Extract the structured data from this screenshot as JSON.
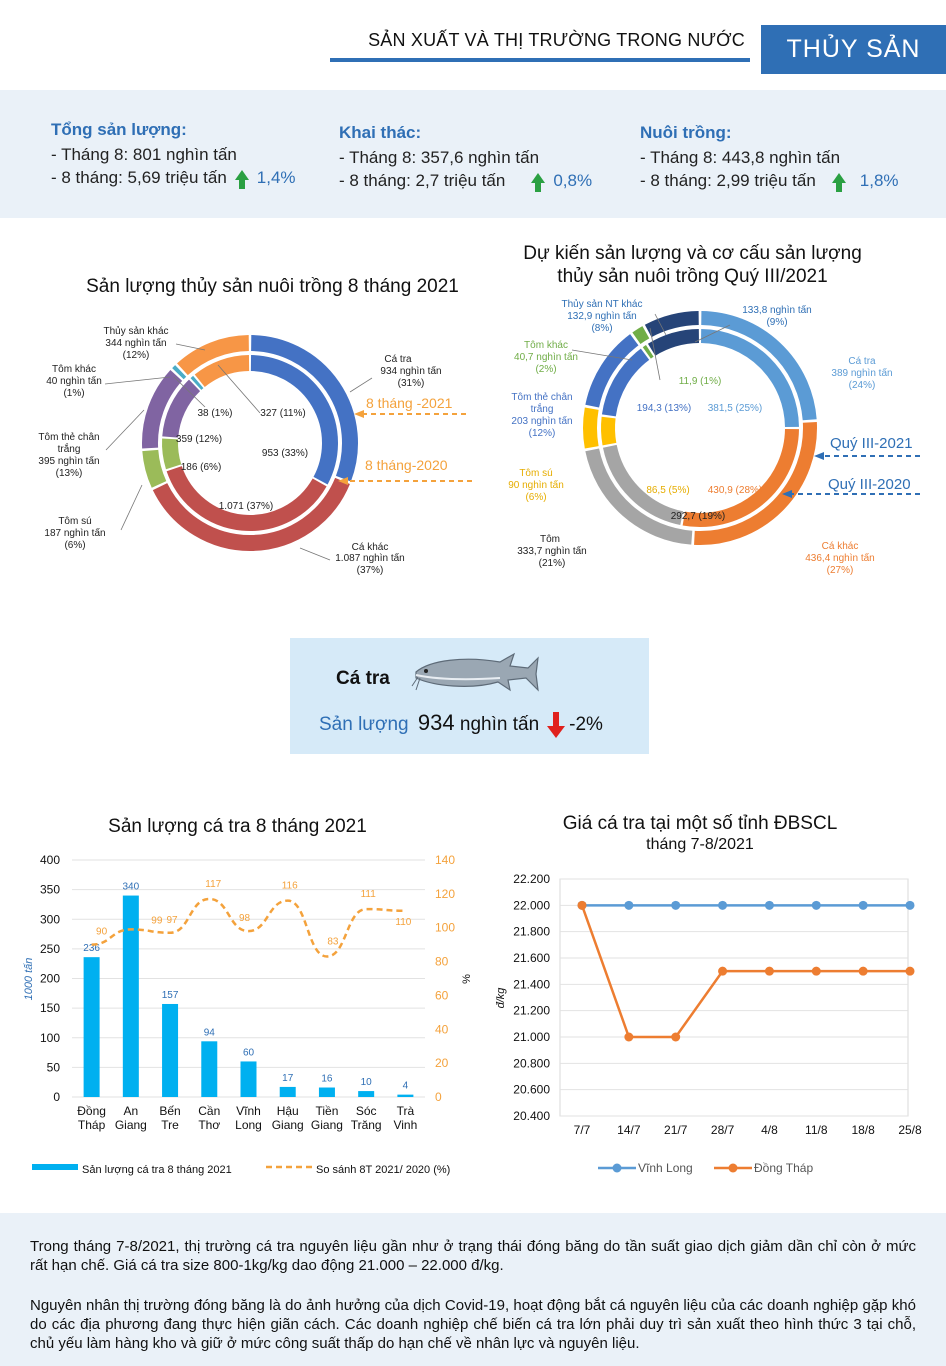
{
  "header": {
    "title": "SẢN XUẤT VÀ THỊ TRƯỜNG TRONG NƯỚC",
    "tag": "THỦY SẢN"
  },
  "stats": [
    {
      "title": "Tổng sản lượng:",
      "line1": "- Tháng 8: 801 nghìn tấn",
      "line2": "- 8 tháng: 5,69 triệu tấn",
      "change": "1,4%"
    },
    {
      "title": "Khai thác:",
      "line1": "- Tháng 8: 357,6 nghìn tấn",
      "line2": "- 8 tháng: 2,7 triệu tấn",
      "change": "0,8%"
    },
    {
      "title": "Nuôi trồng:",
      "line1": "- Tháng 8: 443,8 nghìn tấn",
      "line2": "- 8 tháng: 2,99 triệu tấn",
      "change": "1,8%"
    }
  ],
  "donut1": {
    "title": "Sản lượng thủy sản nuôi trồng 8 tháng 2021",
    "outer_series_label": "8 tháng -2021",
    "inner_series_label": "8 tháng-2020",
    "outer": [
      {
        "name": "Cá tra",
        "l1": "Cá tra",
        "l2": "934 nghìn tấn",
        "l3": "(31%)",
        "value": 31,
        "color": "#4472c4"
      },
      {
        "name": "Cá khác",
        "l1": "Cá khác",
        "l2": "1.087 nghìn tấn",
        "l3": "(37%)",
        "value": 37,
        "color": "#c0504d"
      },
      {
        "name": "Tôm sú",
        "l1": "Tôm sú",
        "l2": "187 nghìn tấn",
        "l3": "(6%)",
        "value": 6,
        "color": "#9bbb59"
      },
      {
        "name": "Tôm thẻ chân trắng",
        "l1": "Tôm thẻ chân",
        "l2": "trắng",
        "l3": "395 nghìn tấn",
        "l4": "(13%)",
        "value": 13,
        "color": "#8064a2"
      },
      {
        "name": "Tôm khác",
        "l1": "Tôm khác",
        "l2": "40 nghìn tấn",
        "l3": "(1%)",
        "value": 1,
        "color": "#4bacc6"
      },
      {
        "name": "Thủy sản khác",
        "l1": "Thủy sản khác",
        "l2": "344 nghìn tấn",
        "l3": "(12%)",
        "value": 12,
        "color": "#f79646"
      }
    ],
    "inner": [
      {
        "name": "Cá tra",
        "label": "953 (33%)",
        "value": 33
      },
      {
        "name": "Cá khác",
        "label": "1.071 (37%)",
        "value": 37
      },
      {
        "name": "Tôm sú",
        "label": "186 (6%)",
        "value": 6
      },
      {
        "name": "Tôm thẻ chân trắng",
        "label": "359 (12%)",
        "value": 12
      },
      {
        "name": "Tôm khác",
        "label": "38 (1%)",
        "value": 1
      },
      {
        "name": "Thủy sản khác",
        "label": "327 (11%)",
        "value": 11
      }
    ]
  },
  "donut2": {
    "title1": "Dự kiến sản lượng và cơ cấu sản lượng",
    "title2": "thủy sản nuôi trồng Quý III/2021",
    "outer_series_label": "Quý III-2021",
    "inner_series_label": "Quý III-2020",
    "outer": [
      {
        "name": "Cá tra",
        "l1": "Cá tra",
        "l2": "389 nghìn tấn",
        "l3": "(24%)",
        "value": 24,
        "color": "#5b9bd5"
      },
      {
        "name": "Cá khác",
        "l1": "Cá khác",
        "l2": "436,4 nghìn tấn",
        "l3": "(27%)",
        "value": 27,
        "color": "#ed7d31"
      },
      {
        "name": "Tôm",
        "l1": "Tôm",
        "l2": "333,7  nghìn tấn",
        "l3": "(21%)",
        "value": 21,
        "color": "#a5a5a5"
      },
      {
        "name": "Tôm sú",
        "l1": "Tôm sú",
        "l2": "90 nghìn tấn",
        "l3": "(6%)",
        "value": 6,
        "color": "#ffc000"
      },
      {
        "name": "Tôm thẻ chân trắng",
        "l1": "Tôm thẻ chân",
        "l2": "trắng",
        "l3": "203 nghìn tấn",
        "l4": "(12%)",
        "value": 12,
        "color": "#4472c4"
      },
      {
        "name": "Tôm khác",
        "l1": "Tôm khác",
        "l2": "40,7 nghìn tấn",
        "l3": "(2%)",
        "value": 2,
        "color": "#70ad47"
      },
      {
        "name": "Thủy sản NT khác",
        "l1": "Thủy sản NT khác",
        "l2": "132,9  nghìn tấn",
        "l3": "(8%)",
        "value": 8,
        "color": "#264478"
      }
    ],
    "inner": [
      {
        "label": "381,5  (25%)",
        "value": 25
      },
      {
        "label": "430,9  (28%)",
        "value": 28
      },
      {
        "label": "292,7  (19%)",
        "value": 19
      },
      {
        "label": "86,5  (5%)",
        "value": 5
      },
      {
        "label": "194,3  (13%)",
        "value": 13
      },
      {
        "label": "11,9  (1%)",
        "value": 1
      },
      {
        "label": "133,8  nghìn tấn",
        "label2": "(9%)",
        "value": 9
      }
    ]
  },
  "catra": {
    "name": "Cá tra",
    "label": "Sản lượng",
    "value": "934",
    "unit": "nghìn tấn",
    "change": "-2%"
  },
  "chart_data": [
    {
      "type": "bar",
      "title": "Sản lượng cá tra 8 tháng 2021",
      "categories": [
        [
          "Đồng",
          "Tháp"
        ],
        [
          "An",
          "Giang"
        ],
        [
          "Bến",
          "Tre"
        ],
        [
          "Cần",
          "Thơ"
        ],
        [
          "Vĩnh",
          "Long"
        ],
        [
          "Hậu",
          "Giang"
        ],
        [
          "Tiền",
          "Giang"
        ],
        [
          "Sóc",
          "Trăng"
        ],
        [
          "Trà",
          "Vinh"
        ]
      ],
      "series": [
        {
          "name": "Sản lượng cá tra 8 tháng 2021",
          "values": [
            236,
            340,
            157,
            94,
            60,
            17,
            16,
            10,
            4
          ],
          "color": "#00b0f0",
          "axis": "left"
        },
        {
          "name": "So sánh 8T 2021/ 2020 (%)",
          "values": [
            90,
            99,
            97,
            117,
            98,
            116,
            83,
            111,
            110
          ],
          "color": "#f4a23c",
          "axis": "right"
        }
      ],
      "ylabel": "1000 tấn",
      "y2label": "%",
      "ylim": [
        0,
        400
      ],
      "yticks": [
        0,
        50,
        100,
        150,
        200,
        250,
        300,
        350,
        400
      ],
      "y2lim": [
        0,
        140
      ],
      "y2ticks": [
        0,
        20,
        40,
        60,
        80,
        100,
        120,
        140
      ]
    },
    {
      "type": "line",
      "title": "Giá cá tra tại một số tỉnh ĐBSCL",
      "subtitle": "tháng 7-8/2021",
      "x": [
        "7/7",
        "14/7",
        "21/7",
        "28/7",
        "4/8",
        "11/8",
        "18/8",
        "25/8"
      ],
      "series": [
        {
          "name": "Vĩnh Long",
          "values": [
            22000,
            22000,
            22000,
            22000,
            22000,
            22000,
            22000,
            22000
          ],
          "color": "#5b9bd5"
        },
        {
          "name": "Đồng Tháp",
          "values": [
            22000,
            21000,
            21000,
            21500,
            21500,
            21500,
            21500,
            21500
          ],
          "color": "#ed7d31"
        }
      ],
      "ylabel": "đ/kg",
      "ylim": [
        20400,
        22200
      ],
      "yticks": [
        "20.400",
        "20.600",
        "20.800",
        "21.000",
        "21.200",
        "21.400",
        "21.600",
        "21.800",
        "22.000",
        "22.200"
      ]
    }
  ],
  "footer": {
    "p1": "Trong tháng 7-8/2021, thị trường cá tra nguyên liệu gần như ở trạng thái đóng băng do tần suất giao dịch giảm dần chỉ còn ở mức rất hạn chế. Giá cá tra size 800-1kg/kg dao động 21.000 – 22.000 đ/kg.",
    "p2": "Nguyên nhân thị trường đóng băng là do ảnh hưởng của dịch Covid-19, hoạt động bắt cá nguyên liệu của các doanh nghiệp gặp khó do các địa phương đang thực hiện giãn cách. Các doanh nghiệp chế biến cá tra lớn phải duy trì sản xuất theo hình thức 3 tại chỗ, chủ yếu làm hàng kho và giữ ở mức công suất thấp do hạn chế về nhân lực và nguyên liệu."
  }
}
